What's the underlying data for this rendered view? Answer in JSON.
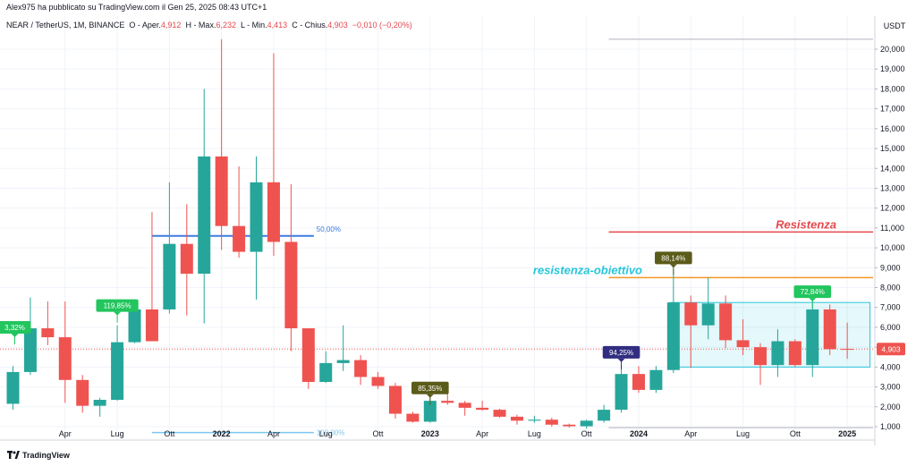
{
  "header": {
    "text": "Alex975 ha pubblicato su TradingView.com il Gen 25, 2025 08:43 UTC+1"
  },
  "footer": {
    "brand": "TradingView",
    "logo_icon": "tradingview-logo-icon"
  },
  "chart_data": {
    "type": "candlestick",
    "legend": {
      "symbol": "NEAR / TetherUS, 1M, BINANCE",
      "open_label": "O",
      "open_text": "Aper.",
      "open": "4,912",
      "high_label": "H",
      "high_text": "Max.",
      "high": "6,232",
      "low_label": "L",
      "low_text": "Min.",
      "low": "4,413",
      "close_label": "C",
      "close_text": "Chius.",
      "close": "4,903",
      "change": "−0,010 (−0,20%)"
    },
    "y_axis": {
      "unit": "USDT",
      "ylim": [
        0,
        21000
      ],
      "ticks": [
        {
          "v": 1000,
          "label": "1,000"
        },
        {
          "v": 2000,
          "label": "2,000"
        },
        {
          "v": 3000,
          "label": "3,000"
        },
        {
          "v": 4000,
          "label": "4,000"
        },
        {
          "v": 5000,
          "label": "5,000"
        },
        {
          "v": 6000,
          "label": "6,000"
        },
        {
          "v": 7000,
          "label": "7,000"
        },
        {
          "v": 8000,
          "label": "8,000"
        },
        {
          "v": 9000,
          "label": "9,000"
        },
        {
          "v": 10000,
          "label": "10,000"
        },
        {
          "v": 11000,
          "label": "11,000"
        },
        {
          "v": 12000,
          "label": "12,000"
        },
        {
          "v": 13000,
          "label": "13,000"
        },
        {
          "v": 14000,
          "label": "14,000"
        },
        {
          "v": 15000,
          "label": "15,000"
        },
        {
          "v": 16000,
          "label": "16,000"
        },
        {
          "v": 17000,
          "label": "17,000"
        },
        {
          "v": 18000,
          "label": "18,000"
        },
        {
          "v": 19000,
          "label": "19,000"
        },
        {
          "v": 20000,
          "label": "20,000"
        }
      ],
      "last_price": 4.903,
      "last_price_label": "4,903"
    },
    "x_axis": {
      "first_month": "2021-01",
      "ticks": [
        {
          "month": "2021-04",
          "label": "Apr"
        },
        {
          "month": "2021-07",
          "label": "Lug"
        },
        {
          "month": "2021-10",
          "label": "Ott"
        },
        {
          "month": "2022-01",
          "label": "2022"
        },
        {
          "month": "2022-04",
          "label": "Apr"
        },
        {
          "month": "2022-07",
          "label": "Lug"
        },
        {
          "month": "2022-10",
          "label": "Ott"
        },
        {
          "month": "2023-01",
          "label": "2023"
        },
        {
          "month": "2023-04",
          "label": "Apr"
        },
        {
          "month": "2023-07",
          "label": "Lug"
        },
        {
          "month": "2023-10",
          "label": "Ott"
        },
        {
          "month": "2024-01",
          "label": "2024"
        },
        {
          "month": "2024-04",
          "label": "Apr"
        },
        {
          "month": "2024-07",
          "label": "Lug"
        },
        {
          "month": "2024-10",
          "label": "Ott"
        },
        {
          "month": "2025-01",
          "label": "2025"
        }
      ]
    },
    "candles": [
      {
        "month": "2021-01",
        "o": 2.15,
        "h": 4.05,
        "l": 1.85,
        "c": 3.75
      },
      {
        "month": "2021-02",
        "o": 3.75,
        "h": 7.5,
        "l": 3.6,
        "c": 5.95
      },
      {
        "month": "2021-03",
        "o": 5.95,
        "h": 7.3,
        "l": 5.1,
        "c": 5.5
      },
      {
        "month": "2021-04",
        "o": 5.5,
        "h": 7.3,
        "l": 2.2,
        "c": 3.35
      },
      {
        "month": "2021-05",
        "o": 3.35,
        "h": 3.6,
        "l": 1.7,
        "c": 2.05
      },
      {
        "month": "2021-06",
        "o": 2.05,
        "h": 2.45,
        "l": 1.5,
        "c": 2.35
      },
      {
        "month": "2021-07",
        "o": 2.35,
        "h": 6.1,
        "l": 2.3,
        "c": 5.25
      },
      {
        "month": "2021-08",
        "o": 5.25,
        "h": 7.0,
        "l": 5.2,
        "c": 6.9
      },
      {
        "month": "2021-09",
        "o": 6.9,
        "h": 11.8,
        "l": 5.3,
        "c": 5.3
      },
      {
        "month": "2021-10",
        "o": 6.9,
        "h": 13.3,
        "l": 6.7,
        "c": 10.2
      },
      {
        "month": "2021-11",
        "o": 10.2,
        "h": 12.2,
        "l": 6.6,
        "c": 8.7
      },
      {
        "month": "2021-12",
        "o": 8.7,
        "h": 18.0,
        "l": 6.2,
        "c": 14.6
      },
      {
        "month": "2022-01",
        "o": 14.6,
        "h": 20.5,
        "l": 9.9,
        "c": 11.1
      },
      {
        "month": "2022-02",
        "o": 11.1,
        "h": 14.1,
        "l": 9.5,
        "c": 9.8
      },
      {
        "month": "2022-03",
        "o": 9.8,
        "h": 14.6,
        "l": 7.4,
        "c": 13.3
      },
      {
        "month": "2022-04",
        "o": 13.3,
        "h": 19.8,
        "l": 9.6,
        "c": 10.3
      },
      {
        "month": "2022-05",
        "o": 10.3,
        "h": 13.2,
        "l": 4.8,
        "c": 5.95
      },
      {
        "month": "2022-06",
        "o": 5.95,
        "h": 5.9,
        "l": 2.9,
        "c": 3.25
      },
      {
        "month": "2022-07",
        "o": 3.25,
        "h": 4.8,
        "l": 3.2,
        "c": 4.2
      },
      {
        "month": "2022-08",
        "o": 4.2,
        "h": 6.1,
        "l": 3.8,
        "c": 4.35
      },
      {
        "month": "2022-09",
        "o": 4.35,
        "h": 4.6,
        "l": 3.1,
        "c": 3.5
      },
      {
        "month": "2022-10",
        "o": 3.5,
        "h": 3.75,
        "l": 2.9,
        "c": 3.05
      },
      {
        "month": "2022-11",
        "o": 3.05,
        "h": 3.2,
        "l": 1.4,
        "c": 1.65
      },
      {
        "month": "2022-12",
        "o": 1.65,
        "h": 1.75,
        "l": 1.2,
        "c": 1.25
      },
      {
        "month": "2023-01",
        "o": 1.25,
        "h": 2.5,
        "l": 1.2,
        "c": 2.3
      },
      {
        "month": "2023-02",
        "o": 2.3,
        "h": 2.85,
        "l": 2.1,
        "c": 2.2
      },
      {
        "month": "2023-03",
        "o": 2.2,
        "h": 2.3,
        "l": 1.55,
        "c": 1.95
      },
      {
        "month": "2023-04",
        "o": 1.95,
        "h": 2.3,
        "l": 1.8,
        "c": 1.85
      },
      {
        "month": "2023-05",
        "o": 1.85,
        "h": 1.9,
        "l": 1.45,
        "c": 1.5
      },
      {
        "month": "2023-06",
        "o": 1.5,
        "h": 1.6,
        "l": 1.1,
        "c": 1.3
      },
      {
        "month": "2023-07",
        "o": 1.3,
        "h": 1.55,
        "l": 1.2,
        "c": 1.35
      },
      {
        "month": "2023-08",
        "o": 1.35,
        "h": 1.45,
        "l": 1.0,
        "c": 1.1
      },
      {
        "month": "2023-09",
        "o": 1.1,
        "h": 1.15,
        "l": 0.95,
        "c": 1.02
      },
      {
        "month": "2023-10",
        "o": 1.02,
        "h": 1.35,
        "l": 0.9,
        "c": 1.3
      },
      {
        "month": "2023-11",
        "o": 1.3,
        "h": 2.1,
        "l": 1.2,
        "c": 1.85
      },
      {
        "month": "2023-12",
        "o": 1.85,
        "h": 4.1,
        "l": 1.7,
        "c": 3.65
      },
      {
        "month": "2024-01",
        "o": 3.65,
        "h": 4.05,
        "l": 2.7,
        "c": 2.85
      },
      {
        "month": "2024-02",
        "o": 2.85,
        "h": 4.05,
        "l": 2.7,
        "c": 3.85
      },
      {
        "month": "2024-03",
        "o": 3.85,
        "h": 8.9,
        "l": 3.7,
        "c": 7.25
      },
      {
        "month": "2024-04",
        "o": 7.25,
        "h": 7.6,
        "l": 3.95,
        "c": 6.1
      },
      {
        "month": "2024-05",
        "o": 6.1,
        "h": 8.5,
        "l": 5.4,
        "c": 7.2
      },
      {
        "month": "2024-06",
        "o": 7.2,
        "h": 7.6,
        "l": 4.95,
        "c": 5.35
      },
      {
        "month": "2024-07",
        "o": 5.35,
        "h": 6.4,
        "l": 4.6,
        "c": 5.0
      },
      {
        "month": "2024-08",
        "o": 5.0,
        "h": 5.2,
        "l": 3.1,
        "c": 4.1
      },
      {
        "month": "2024-09",
        "o": 4.1,
        "h": 5.9,
        "l": 3.5,
        "c": 5.3
      },
      {
        "month": "2024-10",
        "o": 5.3,
        "h": 5.4,
        "l": 4.0,
        "c": 4.1
      },
      {
        "month": "2024-11",
        "o": 4.1,
        "h": 7.5,
        "l": 3.5,
        "c": 6.9
      },
      {
        "month": "2024-12",
        "o": 6.9,
        "h": 7.15,
        "l": 4.6,
        "c": 4.9
      },
      {
        "month": "2025-01",
        "o": 4.912,
        "h": 6.232,
        "l": 4.413,
        "c": 4.903
      }
    ],
    "annotations": {
      "resistance": {
        "value": 10.8,
        "label": "Resistenza",
        "color": "#e5484d"
      },
      "target": {
        "value": 8.5,
        "label": "resistenza-obiettivo",
        "color": "#f59623",
        "label_color": "#26c6da"
      },
      "top_line": {
        "value": 20.5
      },
      "base_line": {
        "value": 0.95
      },
      "fib_50": {
        "value": 10.6,
        "label": "50,00%",
        "color": "#3d7ce0"
      },
      "fib_100": {
        "value": 0.7,
        "label": "100,00%",
        "color": "#7ec8f0"
      },
      "range_box": {
        "from": "2024-03",
        "to": "2025-02",
        "top": 7.25,
        "bottom": 4.0,
        "color": "#26c6da"
      },
      "callouts": [
        {
          "label": "3,32%",
          "month": "2021-01",
          "value": 5.5,
          "color": "#22c55e",
          "side": "above"
        },
        {
          "label": "119,85%",
          "month": "2021-07",
          "value": 6.6,
          "color": "#22c55e",
          "side": "above"
        },
        {
          "label": "85,35%",
          "month": "2023-01",
          "value": 2.45,
          "color": "#5b5b1a",
          "side": "above"
        },
        {
          "label": "94,25%",
          "month": "2023-12",
          "value": 4.25,
          "color": "#312e81",
          "side": "above"
        },
        {
          "label": "88,14%",
          "month": "2024-03",
          "value": 9.0,
          "color": "#5b5b1a",
          "side": "above"
        },
        {
          "label": "72,84%",
          "month": "2024-11",
          "value": 7.3,
          "color": "#22c55e",
          "side": "above"
        }
      ]
    },
    "colors": {
      "up": "#26a69a",
      "down": "#ef5350",
      "last_price_bg": "#ef5350"
    }
  }
}
